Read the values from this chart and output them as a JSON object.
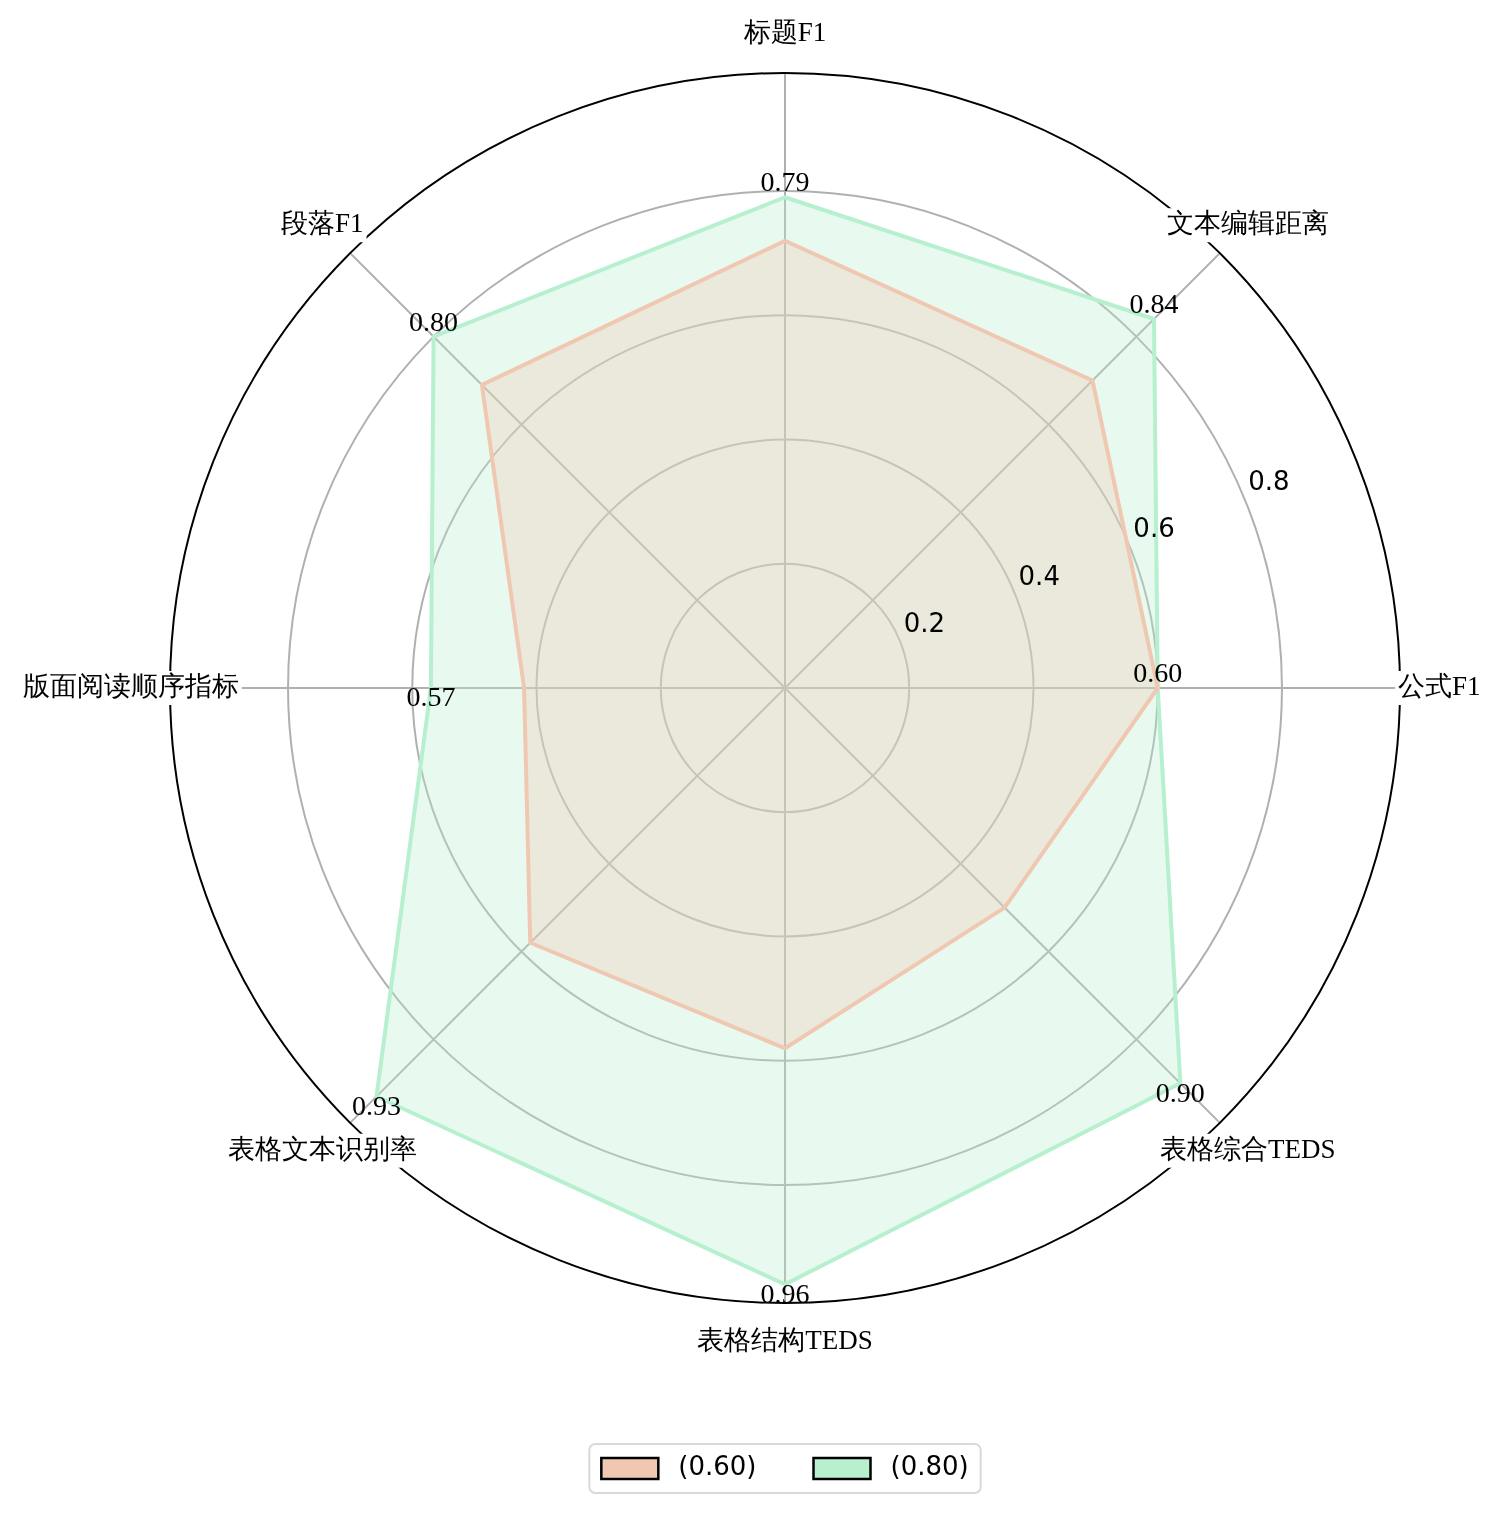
{
  "chart_data": {
    "type": "radar",
    "categories": [
      "标题F1",
      "文本编辑距离",
      "公式F1",
      "表格综合TEDS",
      "表格结构TEDS",
      "表格文本识别率",
      "版面阅读顺序指标",
      "段落F1"
    ],
    "series": [
      {
        "name": "(0.60)",
        "color": "#f0c8b2",
        "values": [
          0.72,
          0.7,
          0.6,
          0.5,
          0.58,
          0.58,
          0.42,
          0.69
        ]
      },
      {
        "name": "(0.80)",
        "color": "#b6f0cf",
        "values": [
          0.79,
          0.84,
          0.6,
          0.9,
          0.96,
          0.93,
          0.57,
          0.8
        ],
        "value_labels": [
          "0.79",
          "0.84",
          "0.60",
          "0.90",
          "0.96",
          "0.93",
          "0.57",
          "0.80"
        ]
      }
    ],
    "ylim": [
      0,
      0.99
    ],
    "yticks": [
      0.2,
      0.4,
      0.6,
      0.8
    ],
    "grid": true,
    "legend": "bottom",
    "marker": "none",
    "line_style": "solid"
  }
}
